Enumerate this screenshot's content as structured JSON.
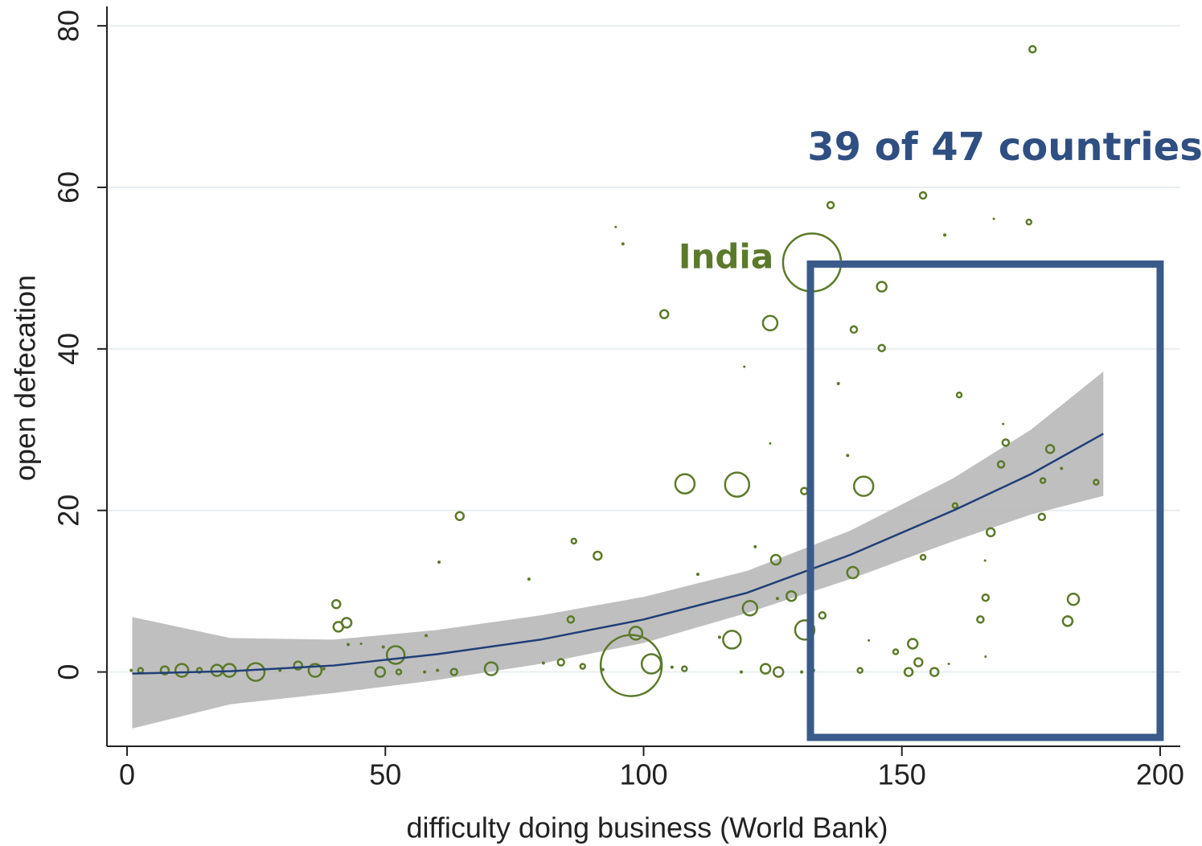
{
  "chart_data": {
    "type": "scatter",
    "xlabel": "difficulty doing business (World Bank)",
    "ylabel": "open defecation",
    "xlim": [
      -3.9,
      203.9
    ],
    "ylim": [
      -9.2,
      82.4
    ],
    "xticks": [
      0,
      50,
      100,
      150,
      200
    ],
    "yticks": [
      0,
      20,
      40,
      60,
      80
    ],
    "grid": true,
    "series": [
      {
        "color": "#5b7a2a",
        "x": [
          175.3,
          154.1,
          136.2,
          94.6,
          96.0,
          158.3,
          167.8,
          174.6,
          132.6,
          146.1,
          104.0,
          124.5,
          140.7,
          146.1,
          119.5,
          137.7,
          161.1,
          169.6,
          170.1,
          124.5,
          139.5,
          178.7,
          169.2,
          180.9,
          177.3,
          187.6,
          108.0,
          118.1,
          142.6,
          131.1,
          160.3,
          177.1,
          64.4,
          167.2,
          86.5,
          121.6,
          91.1,
          125.6,
          154.1,
          60.4,
          166.1,
          140.5,
          110.5,
          77.8,
          128.6,
          125.9,
          166.2,
          183.2,
          40.5,
          120.6,
          134.6,
          85.9,
          42.5,
          40.9,
          165.2,
          182.1,
          131.2,
          98.5,
          117.1,
          114.7,
          57.9,
          42.8,
          45.3,
          143.6,
          52.0,
          152.1,
          148.8,
          49.6,
          97.6,
          101.5,
          153.2,
          166.2,
          159.1,
          141.9,
          151.3,
          156.3,
          123.6,
          126.1,
          130.6,
          118.9,
          107.9,
          84.0,
          80.6,
          70.5,
          63.3,
          60.1,
          57.6,
          49.0,
          52.6,
          36.4,
          33.1,
          24.9,
          19.8,
          17.4,
          10.6,
          7.3,
          2.6,
          0.8,
          29.6,
          14.0,
          38.1,
          88.2,
          92.1,
          105.5,
          132.9
        ],
        "y": [
          77.1,
          59.0,
          57.8,
          55.1,
          53.0,
          54.1,
          56.1,
          55.7,
          50.7,
          47.7,
          44.3,
          43.2,
          42.4,
          40.1,
          37.8,
          35.7,
          34.3,
          30.7,
          28.4,
          28.3,
          26.8,
          27.6,
          25.7,
          25.2,
          23.7,
          23.5,
          23.3,
          23.2,
          23.0,
          22.4,
          20.6,
          19.2,
          19.3,
          17.3,
          16.2,
          15.5,
          14.4,
          13.9,
          14.2,
          13.6,
          13.8,
          12.3,
          12.1,
          11.5,
          9.4,
          9.1,
          9.2,
          9.0,
          8.4,
          7.9,
          7.0,
          6.5,
          6.1,
          5.6,
          6.5,
          6.3,
          5.2,
          4.8,
          4.0,
          4.3,
          4.5,
          3.4,
          3.5,
          3.9,
          2.1,
          3.5,
          2.5,
          3.1,
          0.8,
          1.0,
          1.2,
          1.9,
          1.0,
          0.2,
          0.0,
          0.0,
          0.4,
          0.0,
          0.0,
          0.0,
          0.4,
          1.2,
          1.1,
          0.4,
          0.0,
          0.2,
          0.0,
          0.0,
          0.0,
          0.2,
          0.8,
          0.0,
          0.2,
          0.2,
          0.2,
          0.2,
          0.2,
          0.2,
          0.2,
          0.2,
          0.4,
          0.7,
          0.3,
          0.6,
          0.2
        ],
        "sizes": [
          4,
          4,
          4,
          1.5,
          2,
          2,
          1.5,
          3,
          36,
          6,
          5,
          9,
          4,
          4,
          1.5,
          2,
          3,
          1.5,
          4,
          1.5,
          2,
          5,
          4,
          2,
          3,
          3,
          12,
          15,
          12,
          4,
          3,
          4,
          5,
          5,
          3,
          2,
          5,
          6,
          3,
          2,
          1.5,
          7,
          2,
          2,
          6,
          2,
          4,
          7,
          5,
          9,
          4,
          4,
          6,
          6,
          4,
          6,
          12,
          8,
          11,
          2,
          2,
          2,
          1.5,
          1.5,
          11,
          6,
          3,
          2,
          38,
          12,
          5,
          1.5,
          1.5,
          3,
          5,
          5,
          6,
          6,
          2,
          2,
          3,
          4,
          2,
          8,
          4,
          2,
          2,
          6,
          3,
          8,
          5,
          11,
          8,
          7,
          8,
          5,
          3,
          2,
          2,
          3,
          2,
          3,
          2,
          2,
          2
        ]
      }
    ],
    "fit": {
      "color": "#1f3f78",
      "band_color": "#b4b4b4",
      "x": [
        1,
        20,
        40,
        60,
        80,
        100,
        120,
        140,
        160,
        175,
        189
      ],
      "y": [
        -0.2,
        0.1,
        0.8,
        2.2,
        4.0,
        6.5,
        9.8,
        14.5,
        20.0,
        24.5,
        29.5
      ],
      "lower": [
        -7.0,
        -4.0,
        -2.6,
        -1.0,
        1.0,
        3.6,
        7.3,
        11.5,
        16.2,
        19.5,
        21.8
      ],
      "upper": [
        6.8,
        4.2,
        4.0,
        5.2,
        7.0,
        9.3,
        12.5,
        17.5,
        24.0,
        30.0,
        37.2
      ]
    },
    "highlight_box": {
      "color": "#3a5a8a",
      "xlim": [
        132.3,
        200
      ],
      "ylim": [
        -8.1,
        50.5
      ]
    },
    "annotations": [
      {
        "text": "India",
        "color": "#5b7a2a"
      },
      {
        "text": "39 of 47 countries",
        "color": "#2f4f82"
      }
    ]
  }
}
